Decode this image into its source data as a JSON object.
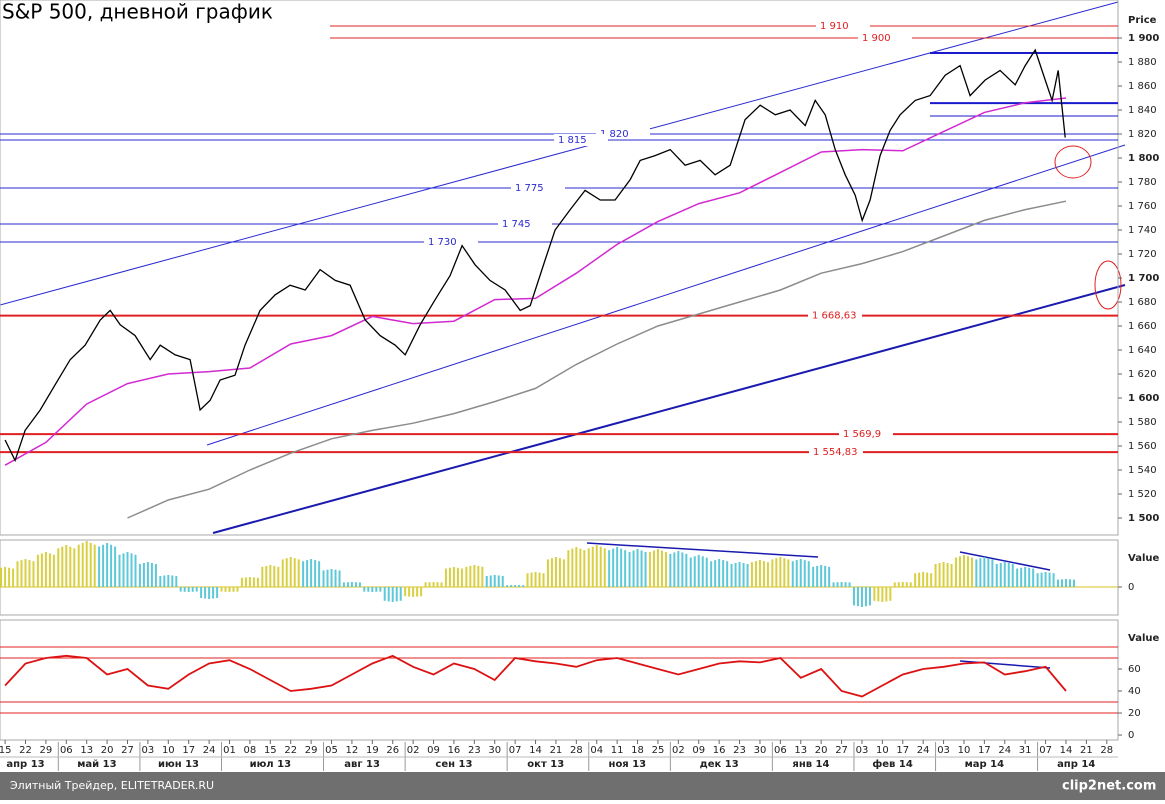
{
  "title": "S&P 500, дневной график",
  "footer": {
    "source": "Элитный Трейдер, ELITETRADER.RU",
    "logo": "clip2net.com"
  },
  "chart_data": [
    {
      "type": "price",
      "axis_title": "Price",
      "ylim": [
        1485.8,
        1931.7
      ],
      "xlim": [
        -0.25,
        54.55
      ],
      "yticks": [
        {
          "value": 1500,
          "label": "1 500"
        },
        {
          "value": 1520,
          "label": "1 520"
        },
        {
          "value": 1540,
          "label": "1 540"
        },
        {
          "value": 1560,
          "label": "1 560"
        },
        {
          "value": 1580,
          "label": "1 580"
        },
        {
          "value": 1600,
          "label": "1 600"
        },
        {
          "value": 1620,
          "label": "1 620"
        },
        {
          "value": 1640,
          "label": "1 640"
        },
        {
          "value": 1660,
          "label": "1 660"
        },
        {
          "value": 1680,
          "label": "1 680"
        },
        {
          "value": 1700,
          "label": "1 700"
        },
        {
          "value": 1720,
          "label": "1 720"
        },
        {
          "value": 1740,
          "label": "1 740"
        },
        {
          "value": 1760,
          "label": "1 760"
        },
        {
          "value": 1780,
          "label": "1 780"
        },
        {
          "value": 1800,
          "label": "1 800"
        },
        {
          "value": 1820,
          "label": "1 820"
        },
        {
          "value": 1840,
          "label": "1 840"
        },
        {
          "value": 1860,
          "label": "1 860"
        },
        {
          "value": 1880,
          "label": "1 880"
        },
        {
          "value": 1900,
          "label": "1 900"
        }
      ],
      "categories": [
        "15",
        "22",
        "29",
        "06",
        "13",
        "20",
        "27",
        "03",
        "10",
        "17",
        "24",
        "01",
        "08",
        "15",
        "22",
        "29",
        "05",
        "12",
        "19",
        "26",
        "02",
        "09",
        "16",
        "23",
        "30",
        "07",
        "14",
        "21",
        "28",
        "04",
        "11",
        "18",
        "25",
        "02",
        "09",
        "16",
        "23",
        "30",
        "06",
        "13",
        "20",
        "27",
        "03",
        "10",
        "17",
        "24",
        "03",
        "10",
        "17",
        "24",
        "31",
        "07",
        "14",
        "21",
        "28"
      ],
      "months": [
        "апр 13",
        "май 13",
        "июн 13",
        "июл 13",
        "авг 13",
        "сен 13",
        "окт 13",
        "ноя 13",
        "дек 13",
        "янв 14",
        "фев 14",
        "мар 14",
        "апр 14"
      ],
      "close": {
        "color": "#000000",
        "x": [
          0,
          0.49,
          0.98,
          1.72,
          2.45,
          3.19,
          3.92,
          4.66,
          5.15,
          5.64,
          6.37,
          7.11,
          7.6,
          8.33,
          9.07,
          9.56,
          10.05,
          10.54,
          11.27,
          11.76,
          12.5,
          13.24,
          13.97,
          14.71,
          15.44,
          16.18,
          16.91,
          17.65,
          18.38,
          19.12,
          19.61,
          20.34,
          21.08,
          21.81,
          22.4,
          23.04,
          23.77,
          24.51,
          25.25,
          25.74,
          26.47,
          26.96,
          27.7,
          28.43,
          29.17,
          29.9,
          30.64,
          31.13,
          31.86,
          32.6,
          33.33,
          34.07,
          34.8,
          35.54,
          36.27,
          37.01,
          37.75,
          38.48,
          39.22,
          39.71,
          40.2,
          40.69,
          41.18,
          41.67,
          42.01,
          42.4,
          42.89,
          43.38,
          43.87,
          44.61,
          45.34,
          46.08,
          46.81,
          47.3,
          48.04,
          48.77,
          49.51,
          50,
          50.49,
          50.98,
          51.32,
          51.62,
          51.96
        ],
        "values": [
          1565,
          1548,
          1573,
          1590,
          1611,
          1632,
          1644,
          1665,
          1673,
          1661,
          1652,
          1632,
          1644,
          1636,
          1632,
          1590,
          1598,
          1615,
          1619,
          1644,
          1673,
          1686,
          1694,
          1690,
          1707,
          1698,
          1694,
          1665,
          1652,
          1644,
          1636,
          1661,
          1682,
          1702,
          1727,
          1711,
          1698,
          1690,
          1673,
          1677,
          1715,
          1740,
          1757,
          1773,
          1765,
          1765,
          1782,
          1798,
          1802,
          1807,
          1794,
          1798,
          1786,
          1794,
          1832,
          1844,
          1836,
          1840,
          1827,
          1848,
          1836,
          1807,
          1786,
          1769,
          1748,
          1765,
          1802,
          1823,
          1836,
          1848,
          1852,
          1869,
          1877,
          1852,
          1865,
          1873,
          1861,
          1877,
          1890,
          1865,
          1848,
          1873,
          1817
        ]
      },
      "moving_averages": [
        {
          "color": "#d22ad2",
          "x": [
            0,
            2,
            4,
            6,
            8,
            10,
            12,
            14,
            16,
            18,
            20,
            22,
            24,
            26,
            28,
            30,
            32,
            34,
            36,
            38,
            40,
            42,
            44,
            46,
            48,
            50,
            52
          ],
          "values": [
            1544,
            1563,
            1595,
            1612,
            1620,
            1622,
            1625,
            1645,
            1652,
            1668,
            1662,
            1664,
            1682,
            1683,
            1704,
            1728,
            1747,
            1762,
            1771,
            1788,
            1805,
            1807,
            1806,
            1822,
            1838,
            1846,
            1850
          ]
        },
        {
          "color": "#8c8c8c",
          "x": [
            6,
            8,
            10,
            12,
            14,
            16,
            18,
            20,
            22,
            24,
            26,
            28,
            30,
            32,
            34,
            36,
            38,
            40,
            42,
            44,
            46,
            48,
            50,
            52
          ],
          "values": [
            1500,
            1515,
            1524,
            1540,
            1554,
            1566,
            1573,
            1579,
            1587,
            1597,
            1608,
            1628,
            1645,
            1660,
            1670,
            1680,
            1690,
            1704,
            1712,
            1722,
            1735,
            1748,
            1757,
            1764
          ]
        }
      ],
      "levels": [
        {
          "value": 1910,
          "label": "1 910",
          "color": "#e02020"
        },
        {
          "value": 1900,
          "label": "1 900",
          "color": "#e02020"
        },
        {
          "value": 1820,
          "label": "1 820",
          "color": "#2a2ad0"
        },
        {
          "value": 1815,
          "label": "1 815",
          "color": "#2a2ad0"
        },
        {
          "value": 1775,
          "label": "1 775",
          "color": "#2a2ad0"
        },
        {
          "value": 1745,
          "label": "1 745",
          "color": "#2a2ad0"
        },
        {
          "value": 1730,
          "label": "1 730",
          "color": "#2a2ad0"
        },
        {
          "value": 1668.63,
          "label": "1 668,63",
          "color": "#e02020"
        },
        {
          "value": 1569.9,
          "label": "1 569,9",
          "color": "#e02020"
        },
        {
          "value": 1554.83,
          "label": "1 554,83",
          "color": "#e02020"
        }
      ],
      "support_lines": [
        {
          "value": 1887.5,
          "color": "#1a1acc"
        },
        {
          "value": 1845.8,
          "color": "#1a1acc"
        },
        {
          "value": 1835,
          "color": "#1a1acc"
        }
      ]
    },
    {
      "type": "histogram",
      "axis_title": "Value",
      "ylim": [
        -28,
        47
      ],
      "yticks": [
        0
      ],
      "colors": {
        "rising": "#d8d040",
        "falling": "#5cc8d8"
      },
      "values": [
        20,
        28,
        35,
        42,
        46,
        44,
        35,
        25,
        12,
        -5,
        -12,
        -5,
        10,
        22,
        30,
        28,
        18,
        5,
        -5,
        -15,
        -10,
        5,
        20,
        22,
        12,
        2,
        15,
        30,
        40,
        42,
        40,
        38,
        38,
        36,
        32,
        28,
        25,
        27,
        30,
        28,
        22,
        5,
        -20,
        -15,
        5,
        15,
        25,
        32,
        30,
        25,
        20,
        15,
        8
      ]
    },
    {
      "type": "line",
      "axis_title": "Value",
      "ylim": [
        -4.5,
        104.5
      ],
      "yticks": [
        0,
        20,
        40,
        60
      ],
      "color": "#dd1111",
      "levels": [
        80,
        70,
        30,
        20
      ],
      "values": [
        45,
        65,
        70,
        72,
        70,
        55,
        60,
        45,
        42,
        55,
        65,
        68,
        60,
        50,
        40,
        42,
        45,
        55,
        65,
        72,
        62,
        55,
        65,
        60,
        50,
        70,
        67,
        65,
        62,
        68,
        70,
        65,
        60,
        55,
        60,
        65,
        67,
        66,
        70,
        52,
        60,
        40,
        35,
        45,
        55,
        60,
        62,
        65,
        66,
        55,
        58,
        62,
        40
      ]
    }
  ]
}
